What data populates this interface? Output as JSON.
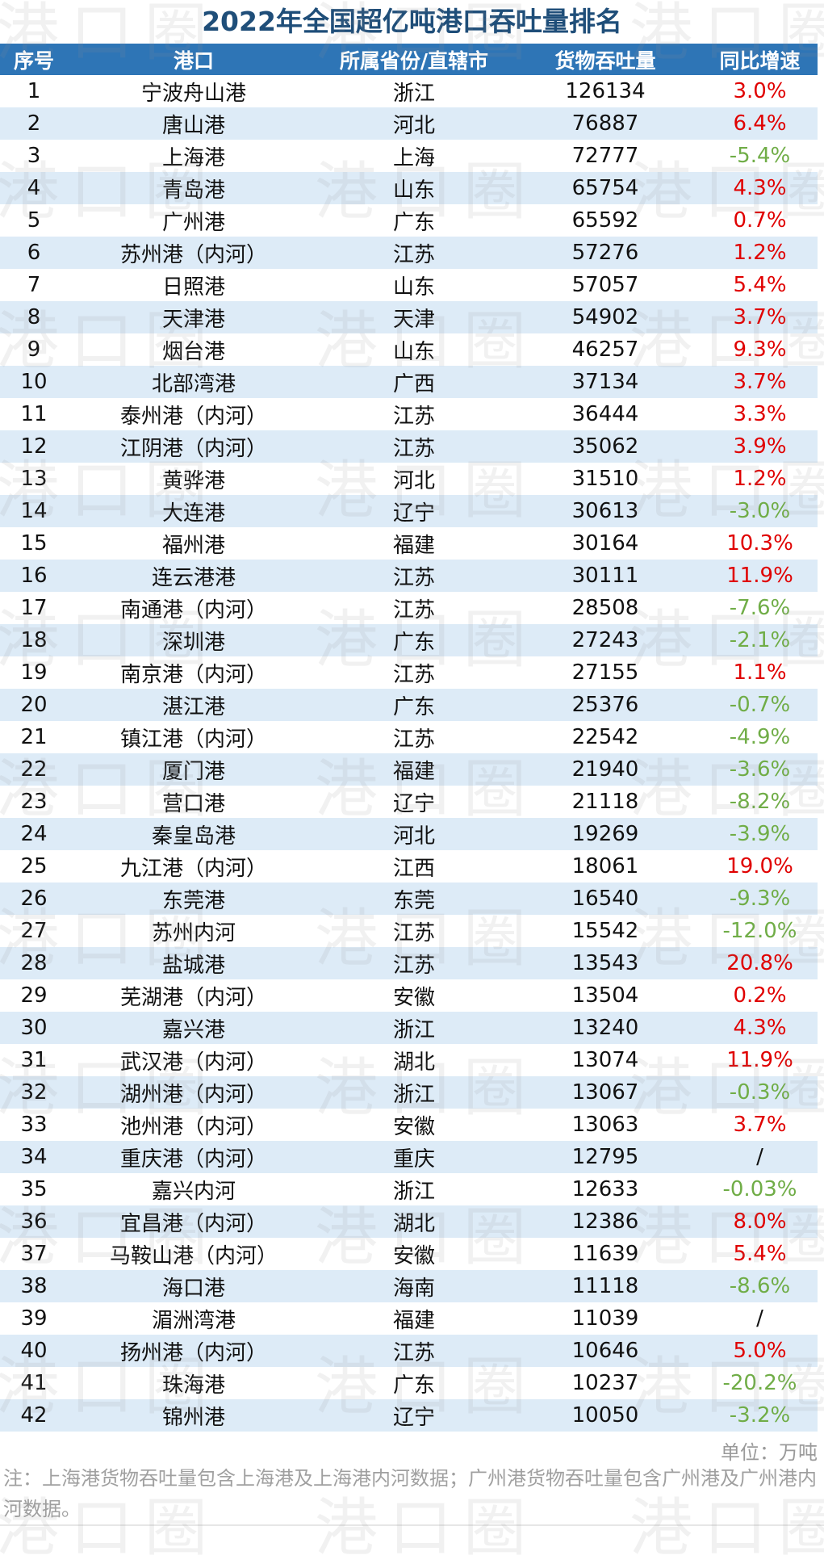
{
  "title": "2022年全国超亿吨港口吞吐量排名",
  "headers": {
    "rank": "序号",
    "port": "港口",
    "province": "所属省份/直辖市",
    "throughput": "货物吞吐量",
    "growth": "同比增速"
  },
  "rows": [
    {
      "rank": "1",
      "port": "宁波舟山港",
      "province": "浙江",
      "throughput": "126134",
      "growth": "3.0%",
      "sign": "pos"
    },
    {
      "rank": "2",
      "port": "唐山港",
      "province": "河北",
      "throughput": "76887",
      "growth": "6.4%",
      "sign": "pos"
    },
    {
      "rank": "3",
      "port": "上海港",
      "province": "上海",
      "throughput": "72777",
      "growth": "-5.4%",
      "sign": "neg"
    },
    {
      "rank": "4",
      "port": "青岛港",
      "province": "山东",
      "throughput": "65754",
      "growth": "4.3%",
      "sign": "pos"
    },
    {
      "rank": "5",
      "port": "广州港",
      "province": "广东",
      "throughput": "65592",
      "growth": "0.7%",
      "sign": "pos"
    },
    {
      "rank": "6",
      "port": "苏州港（内河）",
      "province": "江苏",
      "throughput": "57276",
      "growth": "1.2%",
      "sign": "pos"
    },
    {
      "rank": "7",
      "port": "日照港",
      "province": "山东",
      "throughput": "57057",
      "growth": "5.4%",
      "sign": "pos"
    },
    {
      "rank": "8",
      "port": "天津港",
      "province": "天津",
      "throughput": "54902",
      "growth": "3.7%",
      "sign": "pos"
    },
    {
      "rank": "9",
      "port": "烟台港",
      "province": "山东",
      "throughput": "46257",
      "growth": "9.3%",
      "sign": "pos"
    },
    {
      "rank": "10",
      "port": "北部湾港",
      "province": "广西",
      "throughput": "37134",
      "growth": "3.7%",
      "sign": "pos"
    },
    {
      "rank": "11",
      "port": "泰州港（内河）",
      "province": "江苏",
      "throughput": "36444",
      "growth": "3.3%",
      "sign": "pos"
    },
    {
      "rank": "12",
      "port": "江阴港（内河）",
      "province": "江苏",
      "throughput": "35062",
      "growth": "3.9%",
      "sign": "pos"
    },
    {
      "rank": "13",
      "port": "黄骅港",
      "province": "河北",
      "throughput": "31510",
      "growth": "1.2%",
      "sign": "pos"
    },
    {
      "rank": "14",
      "port": "大连港",
      "province": "辽宁",
      "throughput": "30613",
      "growth": "-3.0%",
      "sign": "neg"
    },
    {
      "rank": "15",
      "port": "福州港",
      "province": "福建",
      "throughput": "30164",
      "growth": "10.3%",
      "sign": "pos"
    },
    {
      "rank": "16",
      "port": "连云港港",
      "province": "江苏",
      "throughput": "30111",
      "growth": "11.9%",
      "sign": "pos"
    },
    {
      "rank": "17",
      "port": "南通港（内河）",
      "province": "江苏",
      "throughput": "28508",
      "growth": "-7.6%",
      "sign": "neg"
    },
    {
      "rank": "18",
      "port": "深圳港",
      "province": "广东",
      "throughput": "27243",
      "growth": "-2.1%",
      "sign": "neg"
    },
    {
      "rank": "19",
      "port": "南京港（内河）",
      "province": "江苏",
      "throughput": "27155",
      "growth": "1.1%",
      "sign": "pos"
    },
    {
      "rank": "20",
      "port": "湛江港",
      "province": "广东",
      "throughput": "25376",
      "growth": "-0.7%",
      "sign": "neg"
    },
    {
      "rank": "21",
      "port": "镇江港（内河）",
      "province": "江苏",
      "throughput": "22542",
      "growth": "-4.9%",
      "sign": "neg"
    },
    {
      "rank": "22",
      "port": "厦门港",
      "province": "福建",
      "throughput": "21940",
      "growth": "-3.6%",
      "sign": "neg"
    },
    {
      "rank": "23",
      "port": "营口港",
      "province": "辽宁",
      "throughput": "21118",
      "growth": "-8.2%",
      "sign": "neg"
    },
    {
      "rank": "24",
      "port": "秦皇岛港",
      "province": "河北",
      "throughput": "19269",
      "growth": "-3.9%",
      "sign": "neg"
    },
    {
      "rank": "25",
      "port": "九江港（内河）",
      "province": "江西",
      "throughput": "18061",
      "growth": "19.0%",
      "sign": "pos"
    },
    {
      "rank": "26",
      "port": "东莞港",
      "province": "东莞",
      "throughput": "16540",
      "growth": "-9.3%",
      "sign": "neg"
    },
    {
      "rank": "27",
      "port": "苏州内河",
      "province": "江苏",
      "throughput": "15542",
      "growth": "-12.0%",
      "sign": "neg"
    },
    {
      "rank": "28",
      "port": "盐城港",
      "province": "江苏",
      "throughput": "13543",
      "growth": "20.8%",
      "sign": "pos"
    },
    {
      "rank": "29",
      "port": "芜湖港（内河）",
      "province": "安徽",
      "throughput": "13504",
      "growth": "0.2%",
      "sign": "pos"
    },
    {
      "rank": "30",
      "port": "嘉兴港",
      "province": "浙江",
      "throughput": "13240",
      "growth": "4.3%",
      "sign": "pos"
    },
    {
      "rank": "31",
      "port": "武汉港（内河）",
      "province": "湖北",
      "throughput": "13074",
      "growth": "11.9%",
      "sign": "pos"
    },
    {
      "rank": "32",
      "port": "湖州港（内河）",
      "province": "浙江",
      "throughput": "13067",
      "growth": "-0.3%",
      "sign": "neg"
    },
    {
      "rank": "33",
      "port": "池州港（内河）",
      "province": "安徽",
      "throughput": "13063",
      "growth": "3.7%",
      "sign": "pos"
    },
    {
      "rank": "34",
      "port": "重庆港（内河）",
      "province": "重庆",
      "throughput": "12795",
      "growth": "/",
      "sign": "na"
    },
    {
      "rank": "35",
      "port": "嘉兴内河",
      "province": "浙江",
      "throughput": "12633",
      "growth": "-0.03%",
      "sign": "neg"
    },
    {
      "rank": "36",
      "port": "宜昌港（内河）",
      "province": "湖北",
      "throughput": "12386",
      "growth": "8.0%",
      "sign": "pos"
    },
    {
      "rank": "37",
      "port": "马鞍山港（内河）",
      "province": "安徽",
      "throughput": "11639",
      "growth": "5.4%",
      "sign": "pos"
    },
    {
      "rank": "38",
      "port": "海口港",
      "province": "海南",
      "throughput": "11118",
      "growth": "-8.6%",
      "sign": "neg"
    },
    {
      "rank": "39",
      "port": "湄洲湾港",
      "province": "福建",
      "throughput": "11039",
      "growth": "/",
      "sign": "na"
    },
    {
      "rank": "40",
      "port": "扬州港（内河）",
      "province": "江苏",
      "throughput": "10646",
      "growth": "5.0%",
      "sign": "pos"
    },
    {
      "rank": "41",
      "port": "珠海港",
      "province": "广东",
      "throughput": "10237",
      "growth": "-20.2%",
      "sign": "neg"
    },
    {
      "rank": "42",
      "port": "锦州港",
      "province": "辽宁",
      "throughput": "10050",
      "growth": "-3.2%",
      "sign": "neg"
    }
  ],
  "unit": "单位：万吨",
  "note": "注：上海港货物吞吐量包含上海港及上海港内河数据；广州港货物吞吐量包含广州港及广州港内河数据。",
  "watermark": "港口圈",
  "colors": {
    "title": "#1f4e79",
    "header_bg": "#2e75b6",
    "stripe": "#ddebf7",
    "positive": "#e00000",
    "negative": "#70ad47"
  }
}
